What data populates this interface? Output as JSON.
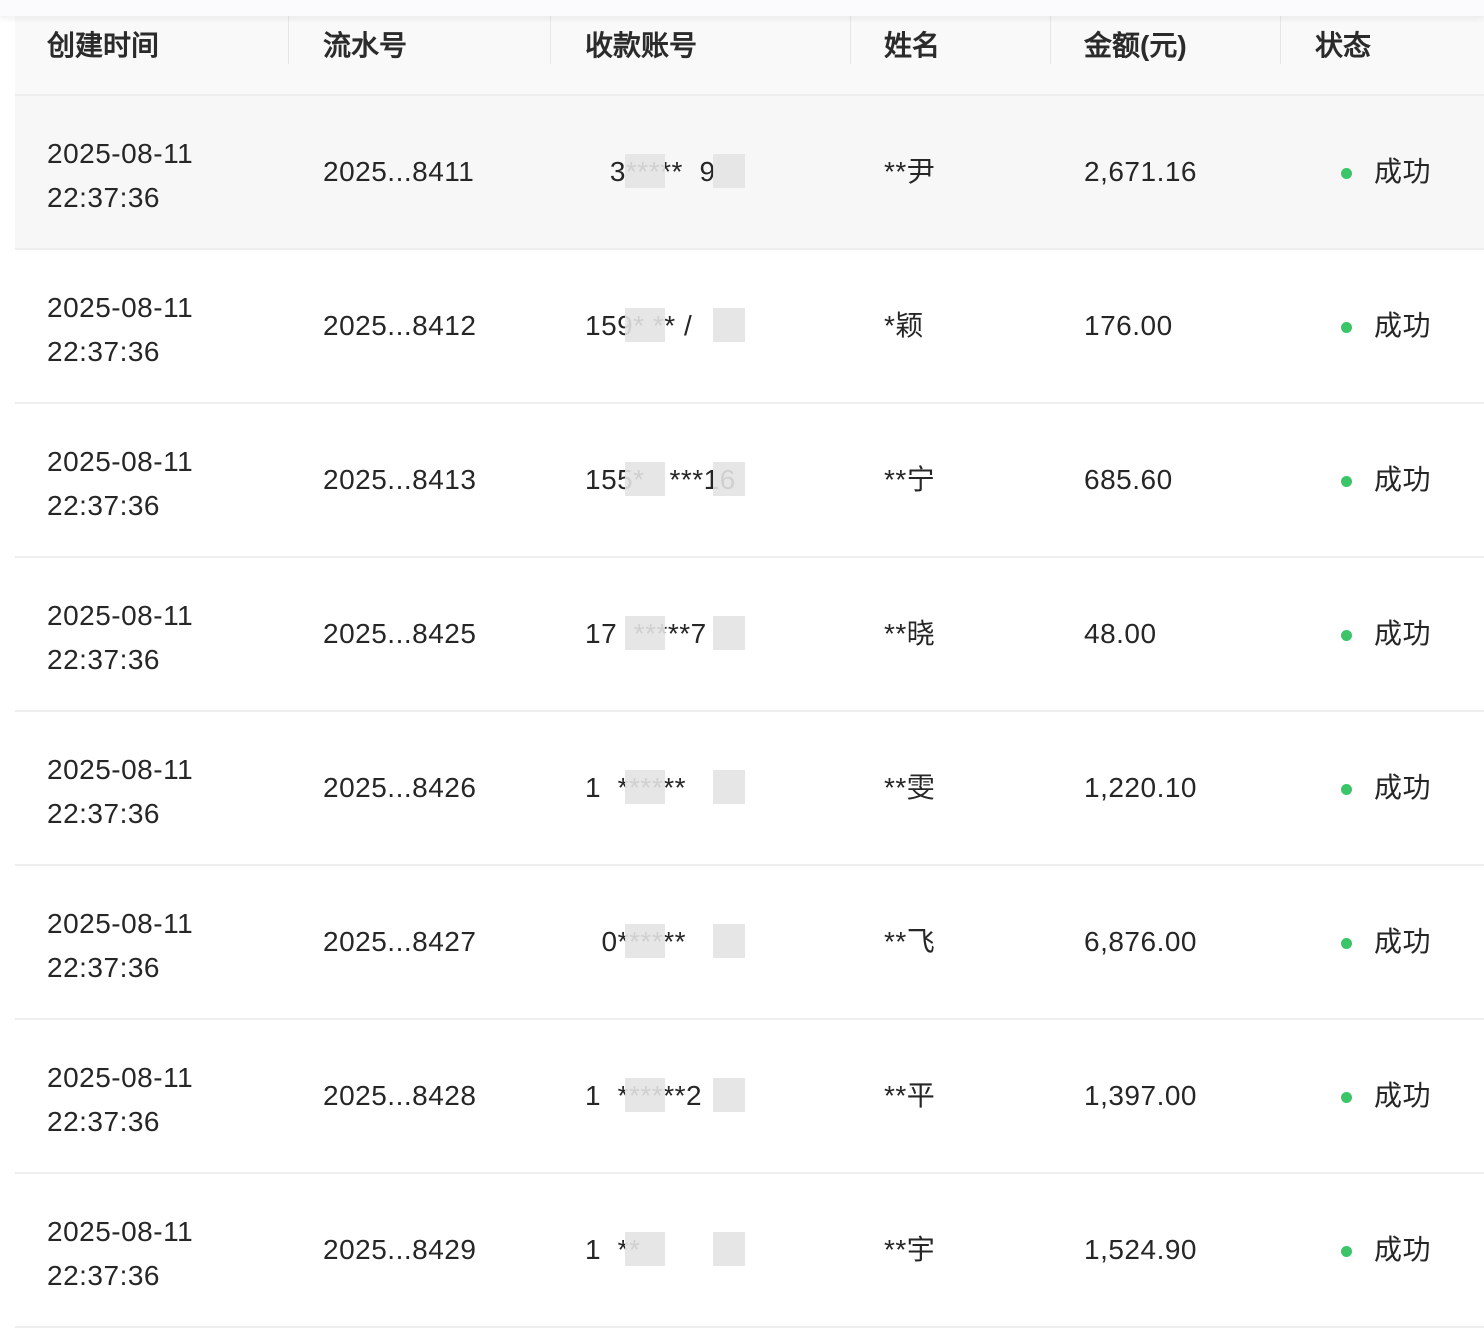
{
  "colors": {
    "success": "#3ac569"
  },
  "headers": [
    "创建时间",
    "流水号",
    "收款账号",
    "姓名",
    "金额(元)",
    "状态"
  ],
  "rows": [
    {
      "date": "2025-08-11",
      "time": "22:37:36",
      "serial": "2025...8411",
      "account": "   3*****  9",
      "name": "**尹",
      "amount": "2,671.16",
      "status": "成功"
    },
    {
      "date": "2025-08-11",
      "time": "22:37:36",
      "serial": "2025...8412",
      "account": "159* ** /",
      "name": "*颖",
      "amount": "176.00",
      "status": "成功"
    },
    {
      "date": "2025-08-11",
      "time": "22:37:36",
      "serial": "2025...8413",
      "account": "155*   ***16",
      "name": "**宁",
      "amount": "685.60",
      "status": "成功"
    },
    {
      "date": "2025-08-11",
      "time": "22:37:36",
      "serial": "2025...8425",
      "account": "17  *****7",
      "name": "**晓",
      "amount": "48.00",
      "status": "成功"
    },
    {
      "date": "2025-08-11",
      "time": "22:37:36",
      "serial": "2025...8426",
      "account": "1  ******",
      "name": "**雯",
      "amount": "1,220.10",
      "status": "成功"
    },
    {
      "date": "2025-08-11",
      "time": "22:37:36",
      "serial": "2025...8427",
      "account": "  0******",
      "name": "**飞",
      "amount": "6,876.00",
      "status": "成功"
    },
    {
      "date": "2025-08-11",
      "time": "22:37:36",
      "serial": "2025...8428",
      "account": "1  ******2",
      "name": "**平",
      "amount": "1,397.00",
      "status": "成功"
    },
    {
      "date": "2025-08-11",
      "time": "22:37:36",
      "serial": "2025...8429",
      "account": "1  **",
      "name": "**宇",
      "amount": "1,524.90",
      "status": "成功"
    }
  ]
}
